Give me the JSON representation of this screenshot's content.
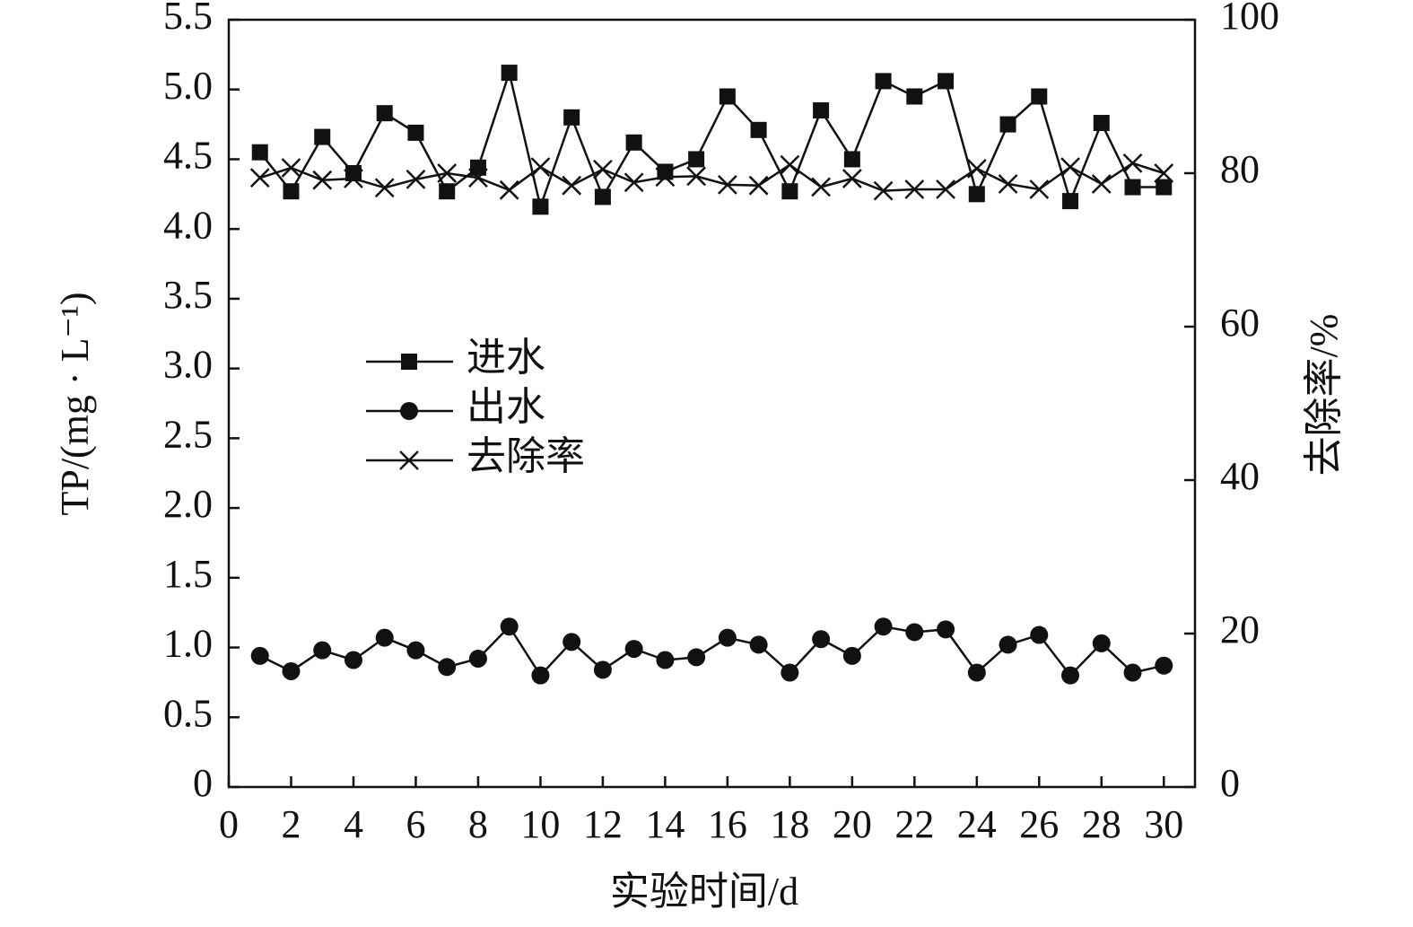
{
  "chart_data": {
    "type": "line",
    "xlabel": "实验时间/d",
    "ylabel": "TP/(mg · L⁻¹)",
    "y2label": "去除率/%",
    "x": [
      1,
      2,
      3,
      4,
      5,
      6,
      7,
      8,
      9,
      10,
      11,
      12,
      13,
      14,
      15,
      16,
      17,
      18,
      19,
      20,
      21,
      22,
      23,
      24,
      25,
      26,
      27,
      28,
      29,
      30
    ],
    "xlim": [
      0,
      31
    ],
    "xticks": [
      0,
      2,
      4,
      6,
      8,
      10,
      12,
      14,
      16,
      18,
      20,
      22,
      24,
      26,
      28,
      30
    ],
    "ylim": [
      0,
      5.5
    ],
    "yticks": [
      0,
      0.5,
      {
        "value": 1,
        "label": "1.0"
      },
      1.5,
      {
        "value": 2,
        "label": "2.0"
      },
      2.5,
      {
        "value": 3,
        "label": "3.0"
      },
      3.5,
      {
        "value": 4,
        "label": "4.0"
      },
      4.5,
      {
        "value": 5,
        "label": "5.0"
      },
      5.5
    ],
    "y2lim": [
      0,
      100
    ],
    "y2ticks": [
      0,
      20,
      40,
      60,
      80,
      100
    ],
    "legend": "center-left",
    "series": [
      {
        "name": "进水",
        "color": "#111111",
        "marker": "square",
        "values": [
          4.55,
          4.27,
          4.66,
          4.4,
          4.83,
          4.69,
          4.27,
          4.44,
          5.12,
          4.16,
          4.8,
          4.23,
          4.62,
          4.41,
          4.5,
          4.95,
          4.71,
          4.27,
          4.85,
          4.5,
          5.06,
          4.95,
          5.06,
          4.25,
          4.75,
          4.95,
          4.2,
          4.76,
          4.3,
          4.3
        ]
      },
      {
        "name": "出水",
        "color": "#111111",
        "marker": "circle",
        "values": [
          0.94,
          0.83,
          0.98,
          0.91,
          1.07,
          0.98,
          0.86,
          0.92,
          1.15,
          0.8,
          1.04,
          0.84,
          0.99,
          0.91,
          0.93,
          1.07,
          1.02,
          0.82,
          1.06,
          0.94,
          1.15,
          1.11,
          1.13,
          0.82,
          1.02,
          1.09,
          0.8,
          1.03,
          0.82,
          0.87
        ]
      },
      {
        "name": "去除率",
        "color": "#111111",
        "marker": "x",
        "axis": "y2",
        "values": [
          79.4,
          80.7,
          79.1,
          79.3,
          78.1,
          79.2,
          80.0,
          79.4,
          77.8,
          80.8,
          78.4,
          80.5,
          78.8,
          79.5,
          79.6,
          78.5,
          78.4,
          81.1,
          78.2,
          79.3,
          77.7,
          77.9,
          77.9,
          80.6,
          78.6,
          77.9,
          80.8,
          78.6,
          81.3,
          80.0
        ]
      }
    ]
  }
}
